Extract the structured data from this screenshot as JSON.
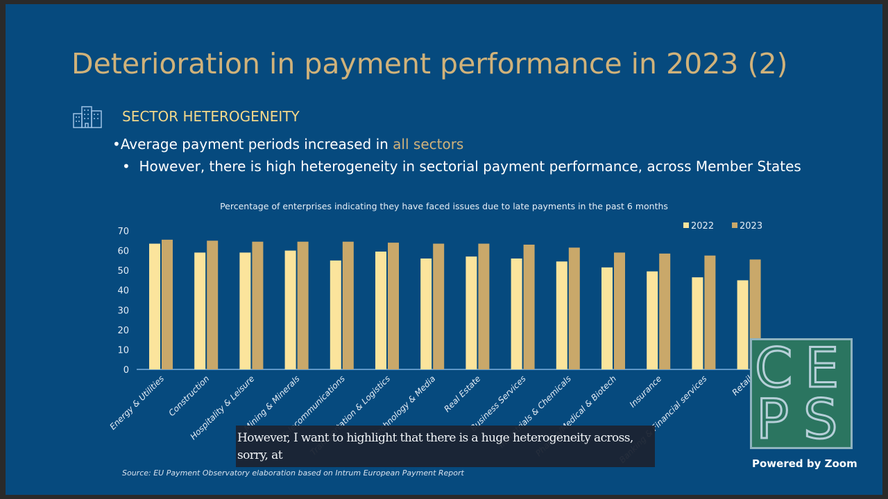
{
  "slide": {
    "title": "Deterioration in payment performance in 2023 (2)",
    "section_title": "SECTOR HETEROGENEITY",
    "bullet1_prefix": "Average payment periods increased in ",
    "bullet1_highlight": "all sectors",
    "bullet2": "However, there is high heterogeneity in sectorial payment performance, across Member States",
    "source": "Source: EU Payment Observatory elaboration based on Intrum European Payment Report"
  },
  "caption": "However, I want to highlight that there is a huge heterogeneity across, sorry, at",
  "logo": {
    "letters": [
      "C",
      "E",
      "P",
      "S"
    ],
    "powered_by": "Powered by Zoom"
  },
  "colors": {
    "bg": "#064a7e",
    "s2022": "#fbe49c",
    "s2023": "#c9a86a",
    "title": "#d0b27a"
  },
  "chart_data": {
    "type": "bar",
    "title": "Percentage of enterprises indicating they have faced issues due to late payments in the past 6 months",
    "categories": [
      "Energy & Utilities",
      "Construction",
      "Hospitality & Leisure",
      "Mining & Minerals",
      "Telecommunications",
      "Transportation & Logistics",
      "Technology & Media",
      "Real Estate",
      "Business Services",
      "Industrials & Chemicals",
      "Pharma/Medical & Biotech",
      "Insurance",
      "Banking & Financial services",
      "Retail"
    ],
    "series": [
      {
        "name": "2022",
        "values": [
          63.5,
          59,
          59,
          60,
          55,
          59.5,
          56,
          57,
          56,
          54.5,
          51.5,
          49.5,
          46.5,
          45
        ]
      },
      {
        "name": "2023",
        "values": [
          65.5,
          65,
          64.5,
          64.5,
          64.5,
          64,
          63.5,
          63.5,
          63,
          61.5,
          59,
          58.5,
          57.5,
          55.5
        ]
      }
    ],
    "yticks": [
      "0",
      "10",
      "20",
      "30",
      "40",
      "50",
      "60",
      "70"
    ],
    "ylim": [
      0,
      70
    ],
    "legend": "top-right",
    "grid": false
  }
}
